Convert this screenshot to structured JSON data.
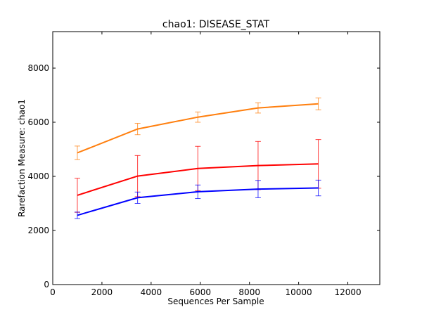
{
  "chart_data": {
    "type": "line",
    "title": "chao1: DISEASE_STAT",
    "xlabel": "Sequences Per Sample",
    "ylabel": "Rarefaction Measure: chao1",
    "xlim": [
      0,
      13300
    ],
    "ylim": [
      0,
      9350
    ],
    "xticks": [
      0,
      2000,
      4000,
      6000,
      8000,
      10000,
      12000
    ],
    "yticks": [
      0,
      2000,
      4000,
      6000,
      8000
    ],
    "grid": false,
    "legend": "none",
    "x": [
      1000,
      3450,
      5900,
      8350,
      10800
    ],
    "series": [
      {
        "color": "#ff7f0e",
        "values": [
          4870,
          5750,
          6190,
          6530,
          6680
        ],
        "errors": [
          250,
          210,
          190,
          190,
          220
        ]
      },
      {
        "color": "#ff0000",
        "values": [
          3300,
          4010,
          4290,
          4400,
          4460
        ],
        "errors": [
          630,
          760,
          820,
          890,
          900
        ]
      },
      {
        "color": "#0000ff",
        "values": [
          2560,
          3210,
          3430,
          3530,
          3570
        ],
        "errors": [
          120,
          210,
          250,
          320,
          290
        ]
      }
    ]
  }
}
